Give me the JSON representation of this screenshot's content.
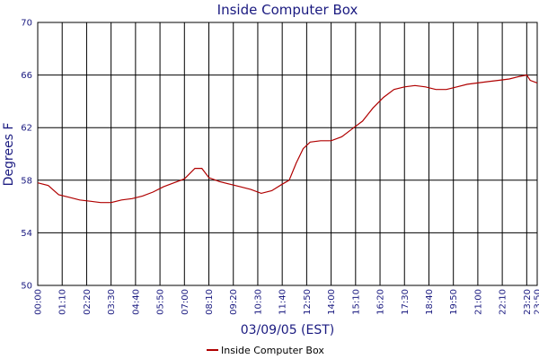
{
  "chart_data": {
    "type": "line",
    "title": "Inside Computer Box",
    "xlabel": "03/09/05 (EST)",
    "ylabel": "Degrees F",
    "x": [
      0,
      30,
      60,
      90,
      120,
      150,
      180,
      210,
      240,
      270,
      300,
      330,
      360,
      390,
      420,
      450,
      470,
      490,
      520,
      550,
      580,
      610,
      640,
      670,
      700,
      720,
      740,
      760,
      780,
      810,
      840,
      870,
      900,
      930,
      960,
      990,
      1020,
      1050,
      1080,
      1110,
      1140,
      1170,
      1200,
      1230,
      1260,
      1290,
      1320,
      1350,
      1380,
      1400,
      1410,
      1430
    ],
    "series": [
      {
        "name": "Inside Computer Box",
        "color": "#b00000",
        "values": [
          57.8,
          57.6,
          56.9,
          56.7,
          56.5,
          56.4,
          56.3,
          56.3,
          56.5,
          56.6,
          56.8,
          57.1,
          57.5,
          57.8,
          58.1,
          58.9,
          58.9,
          58.2,
          57.9,
          57.7,
          57.5,
          57.3,
          57.0,
          57.2,
          57.7,
          58.0,
          59.3,
          60.4,
          60.9,
          61.0,
          61.0,
          61.3,
          61.9,
          62.5,
          63.5,
          64.3,
          64.9,
          65.1,
          65.2,
          65.1,
          64.9,
          64.9,
          65.1,
          65.3,
          65.4,
          65.5,
          65.6,
          65.7,
          65.9,
          66.0,
          65.6,
          65.4
        ]
      }
    ],
    "xlim": [
      0,
      1430
    ],
    "xticks": [
      {
        "value": 0,
        "label": "00:00"
      },
      {
        "value": 70,
        "label": "01:10"
      },
      {
        "value": 140,
        "label": "02:20"
      },
      {
        "value": 210,
        "label": "03:30"
      },
      {
        "value": 280,
        "label": "04:40"
      },
      {
        "value": 350,
        "label": "05:50"
      },
      {
        "value": 420,
        "label": "07:00"
      },
      {
        "value": 490,
        "label": "08:10"
      },
      {
        "value": 560,
        "label": "09:20"
      },
      {
        "value": 630,
        "label": "10:30"
      },
      {
        "value": 700,
        "label": "11:40"
      },
      {
        "value": 770,
        "label": "12:50"
      },
      {
        "value": 840,
        "label": "14:00"
      },
      {
        "value": 910,
        "label": "15:10"
      },
      {
        "value": 980,
        "label": "16:20"
      },
      {
        "value": 1050,
        "label": "17:30"
      },
      {
        "value": 1120,
        "label": "18:40"
      },
      {
        "value": 1190,
        "label": "19:50"
      },
      {
        "value": 1260,
        "label": "21:00"
      },
      {
        "value": 1330,
        "label": "22:10"
      },
      {
        "value": 1400,
        "label": "23:20"
      },
      {
        "value": 1430,
        "label": "23:50"
      }
    ],
    "ylim": [
      50,
      70
    ],
    "yticks": [
      50,
      54,
      58,
      62,
      66,
      70
    ],
    "grid": true
  }
}
